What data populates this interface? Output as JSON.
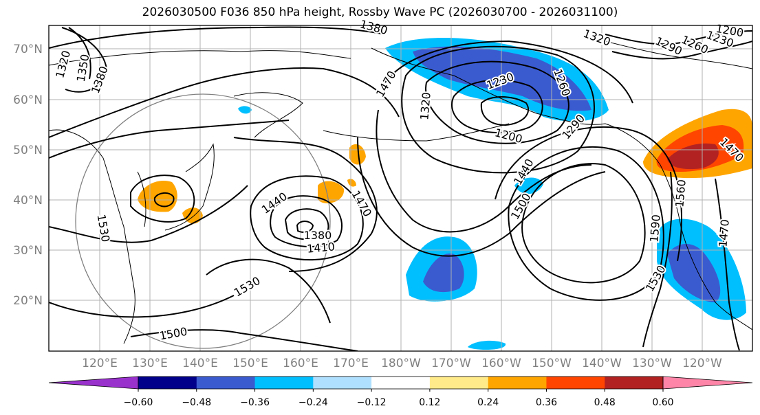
{
  "title": "2026030500 F036 850 hPa height, Rossby Wave PC (2026030700 - 2026031100)",
  "lat_labels": [
    "70°N",
    "60°N",
    "50°N",
    "40°N",
    "30°N",
    "20°N"
  ],
  "lon_labels": [
    "120°E",
    "130°E",
    "140°E",
    "150°E",
    "160°E",
    "170°E",
    "180°W",
    "170°W",
    "160°W",
    "150°W",
    "140°W",
    "130°W",
    "120°W"
  ],
  "contour_labels": [
    "1380",
    "1350",
    "1320",
    "1380",
    "1470",
    "1320",
    "1230",
    "1260",
    "1200",
    "1290",
    "1320",
    "1290",
    "1260",
    "1230",
    "1200",
    "1470",
    "1440",
    "1500",
    "1560",
    "1590",
    "1530",
    "1470",
    "1440",
    "1380",
    "1410",
    "1470",
    "1530",
    "1500",
    "1530"
  ],
  "colorbar": {
    "ticks": [
      "−0.60",
      "−0.48",
      "−0.36",
      "−0.24",
      "−0.12",
      "0.12",
      "0.24",
      "0.36",
      "0.48",
      "0.60"
    ],
    "colors": [
      "#9932CC",
      "#00008B",
      "#3A5BD0",
      "#00BFFF",
      "#B0E0FF",
      "#FFFFFF",
      "#FFEB8A",
      "#FFA500",
      "#FF4500",
      "#B22222",
      "#FF85A8"
    ]
  },
  "colors": {
    "neg_strong": "#3A5BD0",
    "neg_mid": "#00BFFF",
    "pos_mid": "#FFA500",
    "pos_strong": "#FF4500",
    "pos_max": "#B22222"
  }
}
